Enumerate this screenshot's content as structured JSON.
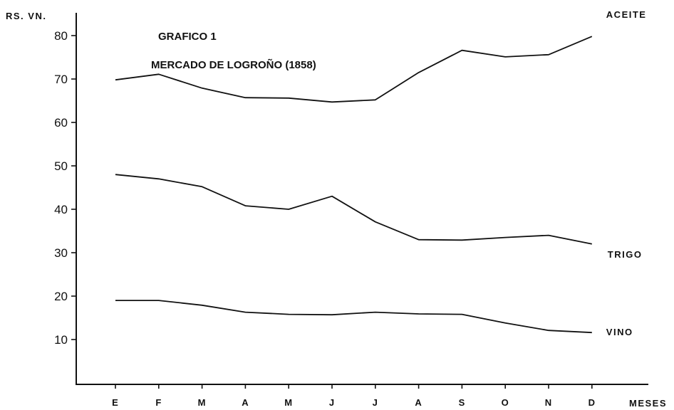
{
  "chart_data": {
    "type": "line",
    "title": "GRAFICO 1",
    "subtitle": "MERCADO DE LOGROÑO (1858)",
    "ylabel": "RS. VN.",
    "xlabel": "MESES",
    "categories": [
      "E",
      "F",
      "M",
      "A",
      "M",
      "J",
      "J",
      "A",
      "S",
      "O",
      "N",
      "D"
    ],
    "ylim": [
      0,
      85
    ],
    "yticks": [
      10,
      20,
      30,
      40,
      50,
      60,
      70,
      80
    ],
    "grid": false,
    "legend": "none",
    "series": [
      {
        "name": "ACEITE",
        "values": [
          69.8,
          71.1,
          67.9,
          65.7,
          65.6,
          64.7,
          65.2,
          71.5,
          76.6,
          75.1,
          75.6,
          79.8
        ]
      },
      {
        "name": "TRIGO",
        "values": [
          48.0,
          47.0,
          45.2,
          40.8,
          40.0,
          43.0,
          37.1,
          33.0,
          32.9,
          33.5,
          34.0,
          32.0
        ]
      },
      {
        "name": "VINO",
        "values": [
          19.0,
          19.0,
          17.9,
          16.3,
          15.8,
          15.7,
          16.3,
          15.9,
          15.8,
          13.8,
          12.1,
          11.6
        ]
      }
    ]
  }
}
